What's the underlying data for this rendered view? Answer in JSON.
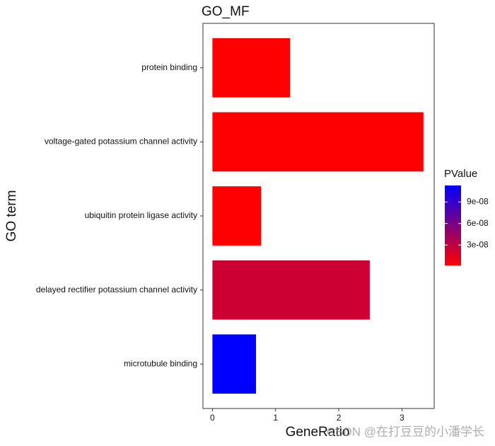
{
  "chart_data": {
    "type": "bar",
    "orientation": "horizontal",
    "title": "GO_MF",
    "x_label": "GeneRatio",
    "y_label": "GO term",
    "categories": [
      "protein binding",
      "voltage-gated potassium channel activity",
      "ubiquitin protein ligase activity",
      "delayed rectifier potassium channel activity",
      "microtubule binding"
    ],
    "values": [
      1.23,
      3.34,
      0.77,
      2.49,
      0.69
    ],
    "pvalues": [
      1.5e-09,
      1.5e-09,
      1.5e-09,
      2.4e-08,
      1.13e-07
    ],
    "xlim": [
      -0.15,
      3.51
    ],
    "xticks": [
      0,
      1,
      2,
      3
    ],
    "legend_title": "PValue",
    "color_low": "#FF0000",
    "color_high": "#0000FF",
    "colorlim": [
      1.5e-09,
      1.13e-07
    ],
    "colorticks": [
      {
        "value": 3e-08,
        "label": "3e-08"
      },
      {
        "value": 6e-08,
        "label": "6e-08"
      },
      {
        "value": 9e-08,
        "label": "9e-08"
      }
    ],
    "watermark": "CSDN @在打豆豆的小潘学长"
  }
}
